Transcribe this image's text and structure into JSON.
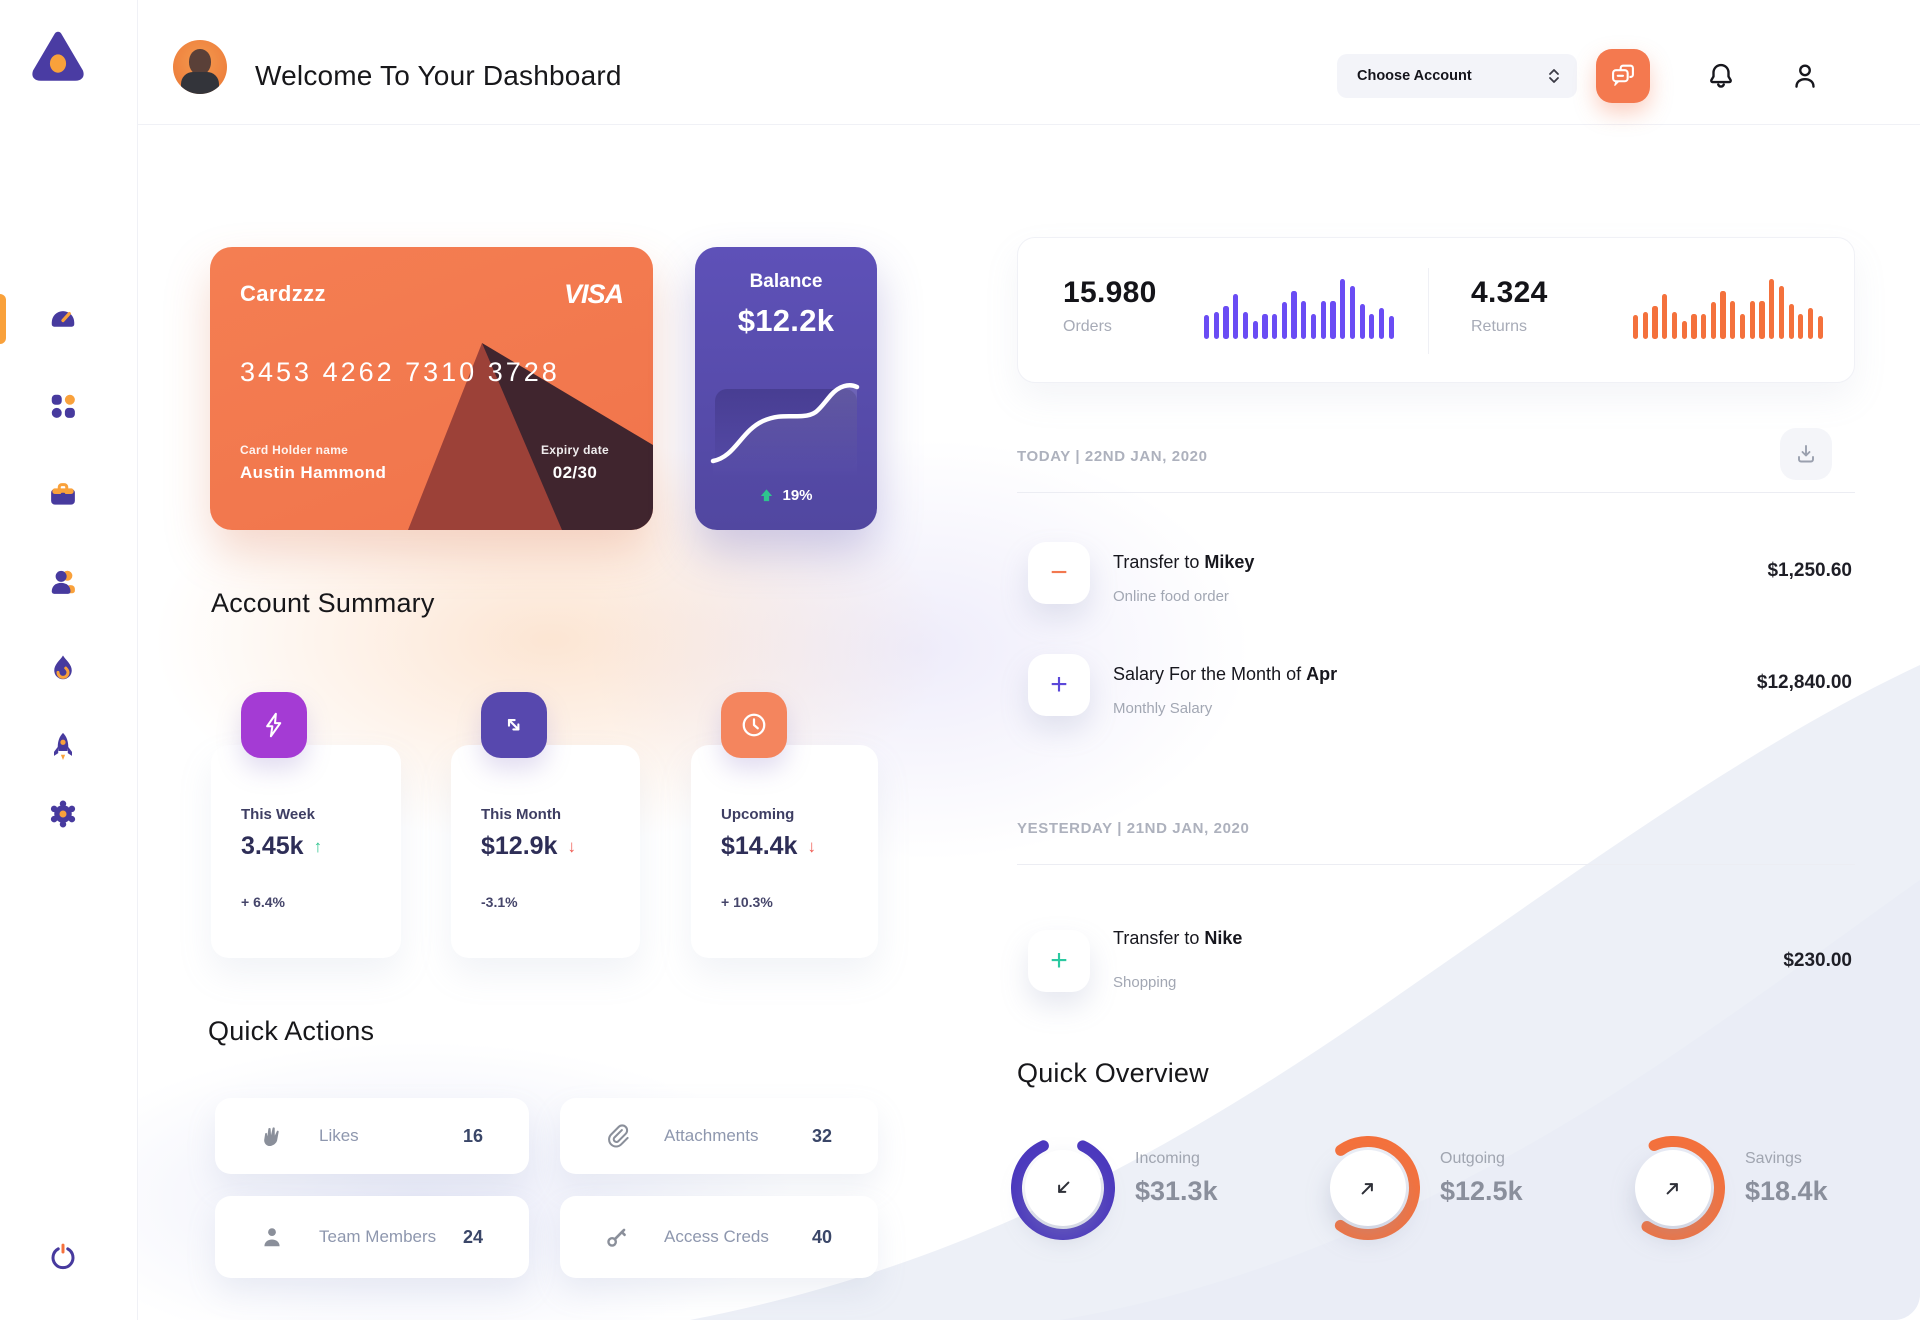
{
  "header": {
    "title": "Welcome To Your Dashboard",
    "account_select": {
      "label": "Choose Account"
    },
    "icons": {
      "chat": "chat-bubbles-icon",
      "notifications": "bell-icon",
      "profile": "user-icon"
    }
  },
  "sidebar": {
    "logo": "triangle-logo",
    "items": [
      "dashboard-speedometer",
      "apps-grid",
      "briefcase",
      "team",
      "flame",
      "rocket",
      "settings-gear"
    ],
    "logout": "power"
  },
  "card": {
    "name": "Cardzzz",
    "brand": "VISA",
    "number": "3453 4262 7310 3728",
    "holder_label": "Card Holder name",
    "holder_name": "Austin Hammond",
    "expiry_label": "Expiry date",
    "expiry_value": "02/30",
    "color": "#F2784F"
  },
  "balance": {
    "title": "Balance",
    "value": "$12.2k",
    "trend_pct": "19%",
    "trend_dir": "up",
    "trend_color": "#2EC48E",
    "color": "#5A4DB0"
  },
  "stats": {
    "orders": {
      "value": "15.980",
      "label": "Orders",
      "color": "#6A4CF4",
      "bars": [
        40,
        45,
        55,
        75,
        45,
        30,
        42,
        42,
        62,
        80,
        64,
        42,
        64,
        64,
        100,
        88,
        58,
        42,
        52,
        38
      ]
    },
    "returns": {
      "value": "4.324",
      "label": "Returns",
      "color": "#F4713C",
      "bars": [
        40,
        45,
        55,
        75,
        45,
        30,
        42,
        42,
        62,
        80,
        64,
        42,
        64,
        64,
        100,
        88,
        58,
        42,
        52,
        38
      ]
    }
  },
  "account_summary": {
    "heading": "Account Summary",
    "cards": [
      {
        "label": "This Week",
        "value": "3.45k",
        "arrow": "↑",
        "arrow_color": "#2EC48E",
        "pct": "+ 6.4%",
        "icon": "lightning",
        "icon_bg": "#A43BD4"
      },
      {
        "label": "This Month",
        "value": "$12.9k",
        "arrow": "↓",
        "arrow_color": "#F05A52",
        "pct": "-3.1%",
        "icon": "transfer-arrows",
        "icon_bg": "#5748AE"
      },
      {
        "label": "Upcoming",
        "value": "$14.4k",
        "arrow": "↓",
        "arrow_color": "#F05A52",
        "pct": "+ 10.3%",
        "icon": "clock",
        "icon_bg": "#F4855E"
      }
    ]
  },
  "quick_actions": {
    "heading": "Quick Actions",
    "items": [
      {
        "icon": "waving-hand",
        "label": "Likes",
        "count": "16"
      },
      {
        "icon": "paperclip",
        "label": "Attachments",
        "count": "32"
      },
      {
        "icon": "person",
        "label": "Team Members",
        "count": "24"
      },
      {
        "icon": "key",
        "label": "Access Creds",
        "count": "40"
      }
    ]
  },
  "transactions": {
    "download_icon": "download-icon",
    "groups": [
      {
        "header": "TODAY | 22ND JAN, 2020",
        "rows": [
          {
            "sign": "−",
            "sign_color": "#F2784F",
            "title_prefix": "Transfer to ",
            "title_bold": "Mikey",
            "subtitle": "Online food order",
            "amount": "$1,250.60"
          },
          {
            "sign": "+",
            "sign_color": "#5B48D9",
            "title_prefix": "Salary For the Month of ",
            "title_bold": "Apr",
            "subtitle": "Monthly Salary",
            "amount": "$12,840.00"
          }
        ]
      },
      {
        "header": "YESTERDAY | 21ND JAN, 2020",
        "rows": [
          {
            "sign": "+",
            "sign_color": "#2BC9A0",
            "title_prefix": "Transfer to ",
            "title_bold": "Nike",
            "subtitle": "Shopping",
            "amount": "$230.00"
          }
        ]
      }
    ]
  },
  "quick_overview": {
    "heading": "Quick Overview",
    "items": [
      {
        "label": "Incoming",
        "value": "$31.3k",
        "color": "#4B38BE",
        "pct": 0.86,
        "rotate": 295,
        "dir": "in"
      },
      {
        "label": "Outgoing",
        "value": "$12.5k",
        "color": "#F4713C",
        "pct": 0.7,
        "rotate": 234,
        "dir": "out"
      },
      {
        "label": "Savings",
        "value": "$18.4k",
        "color": "#F4713C",
        "pct": 0.66,
        "rotate": 246,
        "dir": "out"
      }
    ]
  }
}
